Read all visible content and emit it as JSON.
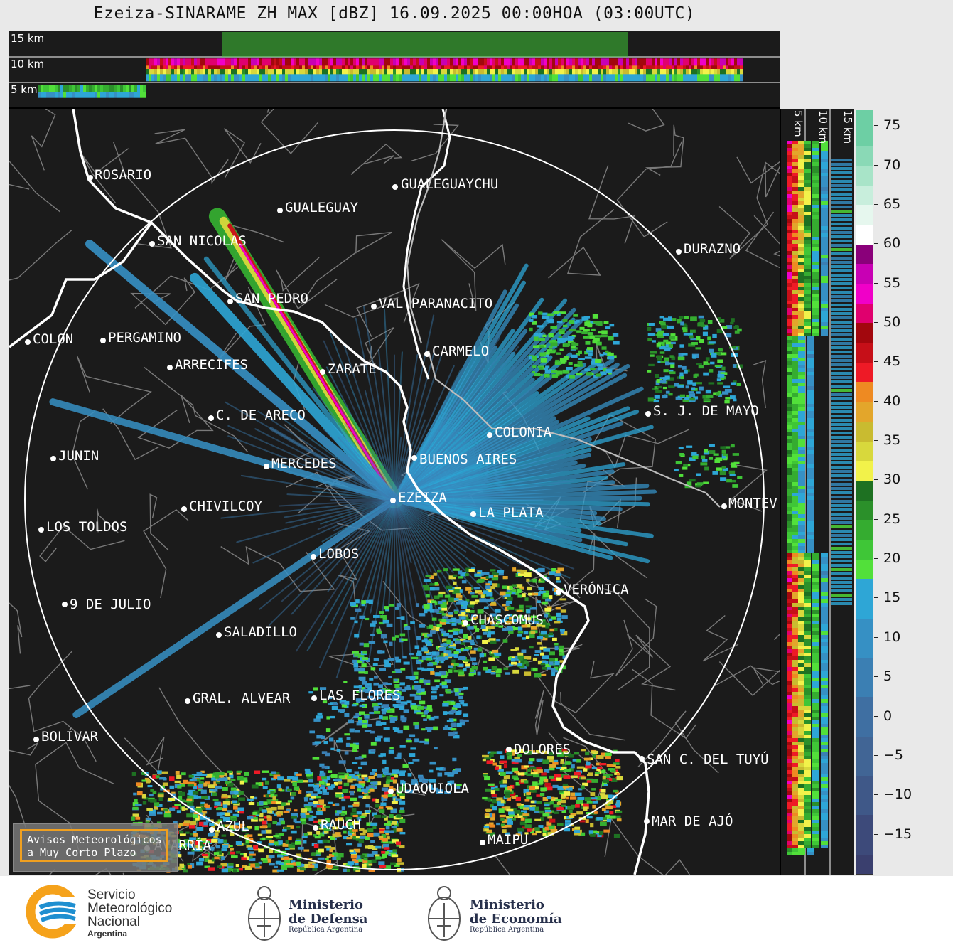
{
  "title": "Ezeiza-SINARAME ZH MAX [dBZ] 16.09.2025 00:00HOA (03:00UTC)",
  "top_section": {
    "height_labels": [
      "15 km",
      "10 km",
      "5 km"
    ]
  },
  "right_section": {
    "height_labels": [
      "5 km",
      "10 km",
      "15 km"
    ]
  },
  "colorbar": {
    "unit": "dBZ",
    "tick_labels": [
      "75",
      "70",
      "65",
      "60",
      "55",
      "50",
      "45",
      "40",
      "35",
      "30",
      "25",
      "20",
      "15",
      "10",
      "5",
      "0",
      "−5",
      "−10",
      "−15"
    ],
    "colors": [
      {
        "from": -20,
        "to": -17.5,
        "color": "#3a3f6e"
      },
      {
        "from": -17.5,
        "to": -12.5,
        "color": "#3d4a7a"
      },
      {
        "from": -12.5,
        "to": -7.5,
        "color": "#3f5888"
      },
      {
        "from": -7.5,
        "to": -2.5,
        "color": "#416595"
      },
      {
        "from": -2.5,
        "to": 2.5,
        "color": "#3f6fa2"
      },
      {
        "from": 2.5,
        "to": 7.5,
        "color": "#3b7fb3"
      },
      {
        "from": 7.5,
        "to": 12.5,
        "color": "#3690c4"
      },
      {
        "from": 12.5,
        "to": 17.5,
        "color": "#2ea6d6"
      },
      {
        "from": 17.5,
        "to": 20,
        "color": "#52e03a"
      },
      {
        "from": 20,
        "to": 22.5,
        "color": "#3fc637"
      },
      {
        "from": 22.5,
        "to": 25,
        "color": "#35ac30"
      },
      {
        "from": 25,
        "to": 27.5,
        "color": "#2b902a"
      },
      {
        "from": 27.5,
        "to": 30,
        "color": "#1e7122"
      },
      {
        "from": 30,
        "to": 32.5,
        "color": "#f2f24a"
      },
      {
        "from": 32.5,
        "to": 35,
        "color": "#d8d83c"
      },
      {
        "from": 35,
        "to": 37.5,
        "color": "#c9bb30"
      },
      {
        "from": 37.5,
        "to": 40,
        "color": "#e3a62b"
      },
      {
        "from": 40,
        "to": 42.5,
        "color": "#ee8a22"
      },
      {
        "from": 42.5,
        "to": 45,
        "color": "#ee1a26"
      },
      {
        "from": 45,
        "to": 47.5,
        "color": "#c60f18"
      },
      {
        "from": 47.5,
        "to": 50,
        "color": "#a2070d"
      },
      {
        "from": 50,
        "to": 52.5,
        "color": "#e0006e"
      },
      {
        "from": 52.5,
        "to": 55,
        "color": "#f000c8"
      },
      {
        "from": 55,
        "to": 57.5,
        "color": "#c800b4"
      },
      {
        "from": 57.5,
        "to": 60,
        "color": "#8a007a"
      },
      {
        "from": 60,
        "to": 62.5,
        "color": "#ffffff"
      },
      {
        "from": 62.5,
        "to": 65,
        "color": "#e6f7ee"
      },
      {
        "from": 65,
        "to": 67.5,
        "color": "#c8eedc"
      },
      {
        "from": 67.5,
        "to": 70,
        "color": "#a8e4c8"
      },
      {
        "from": 70,
        "to": 72.5,
        "color": "#8ad9b6"
      },
      {
        "from": 72.5,
        "to": 77,
        "color": "#6dcfa4"
      }
    ],
    "range": [
      -20,
      77
    ]
  },
  "map": {
    "radar_site": "EZEIZA",
    "cities": [
      {
        "name": "ROSARIO"
      },
      {
        "name": "GUALEGUAYCHU"
      },
      {
        "name": "GUALEGUAY"
      },
      {
        "name": "SAN NICOLAS"
      },
      {
        "name": "DURAZNO"
      },
      {
        "name": "SAN PEDRO"
      },
      {
        "name": "VAL PARANACITO"
      },
      {
        "name": "COLON"
      },
      {
        "name": "PERGAMINO"
      },
      {
        "name": "CARMELO"
      },
      {
        "name": "ARRECIFES"
      },
      {
        "name": "ZARATE"
      },
      {
        "name": "S. J. DE MAYO"
      },
      {
        "name": "C. DE ARECO"
      },
      {
        "name": "COLONIA"
      },
      {
        "name": "JUNIN"
      },
      {
        "name": "BUENOS AIRES"
      },
      {
        "name": "MERCEDES"
      },
      {
        "name": "MONTEV"
      },
      {
        "name": "EZEIZA"
      },
      {
        "name": "CHIVILCOY"
      },
      {
        "name": "LA PLATA"
      },
      {
        "name": "LOS TOLDOS"
      },
      {
        "name": "LOBOS"
      },
      {
        "name": "VERÓNICA"
      },
      {
        "name": "9 DE JULIO"
      },
      {
        "name": "CHASCOMUS"
      },
      {
        "name": "SALADILLO"
      },
      {
        "name": "GRAL. ALVEAR"
      },
      {
        "name": "LAS FLORES"
      },
      {
        "name": "BOLÍVAR"
      },
      {
        "name": "DOLORES"
      },
      {
        "name": "SAN C. DEL TUYÚ"
      },
      {
        "name": "UDAQUIOLA"
      },
      {
        "name": "MAR DE AJÓ"
      },
      {
        "name": "AZUL"
      },
      {
        "name": "RAUCH"
      },
      {
        "name": "MAIPU"
      },
      {
        "name": "AVARRÍA"
      }
    ]
  },
  "alert_button": {
    "line1": "Avisos Meteorológicos",
    "line2": "a Muy Corto Plazo"
  },
  "footer": {
    "smn": {
      "line1": "Servicio",
      "line2": "Meteorológico",
      "line3": "Nacional",
      "line4": "Argentina"
    },
    "defensa": {
      "line1": "Ministerio",
      "line2": "de Defensa",
      "line3": "República Argentina"
    },
    "economia": {
      "line1": "Ministerio",
      "line2": "de Economía",
      "line3": "República Argentina"
    },
    "colors": {
      "smn_orange": "#f5a21b",
      "smn_blue": "#1f8fd0",
      "ministry_navy": "#27304b"
    }
  }
}
